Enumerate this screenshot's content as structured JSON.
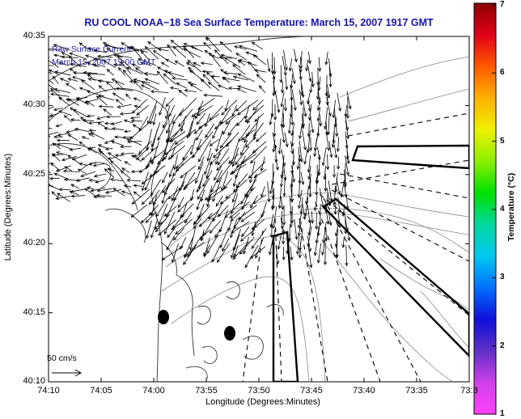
{
  "title": "RU COOL  NOAA−18  Sea Surface Temperature:  March 15, 2007 1917 GMT",
  "legend": {
    "line1": "Raw Surface Current",
    "line2": "March 15, 2007 19:00 GMT"
  },
  "scale_label": "50 cm/s",
  "axes": {
    "xlabel": "Longitude (Degrees:Minutes)",
    "ylabel": "Latitude (Degrees:Minutes)",
    "xticks": [
      "74:10",
      "74:05",
      "74:00",
      "73:55",
      "73:50",
      "73:45",
      "73:40",
      "73:35",
      "73:3"
    ],
    "yticks": [
      "40:35",
      "40:30",
      "40:25",
      "40:20",
      "40:15",
      "40:10"
    ]
  },
  "colorbar": {
    "label": "Temperature (°C)",
    "ticks": [
      "7",
      "6",
      "5",
      "4",
      "3",
      "2",
      "1"
    ],
    "colors": [
      "#8b0000",
      "#e0001a",
      "#ff5a00",
      "#ffb000",
      "#f0f000",
      "#8cf000",
      "#00e000",
      "#00d8a0",
      "#00c8f0",
      "#0070ff",
      "#1010d8",
      "#6030c8",
      "#d040e8",
      "#ff40ff"
    ]
  }
}
